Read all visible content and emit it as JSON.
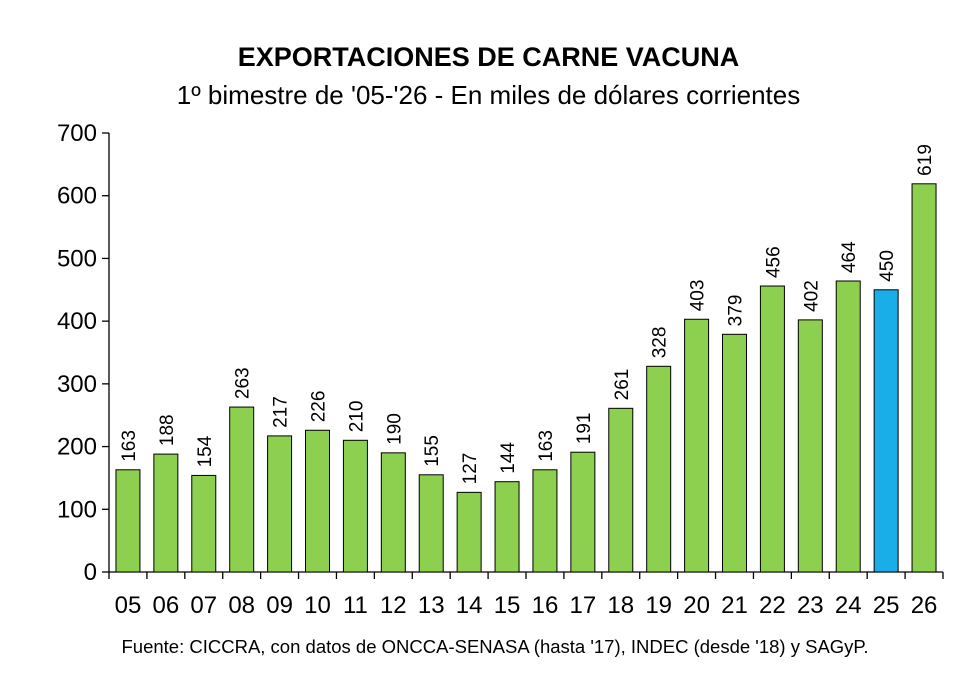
{
  "chart_data": {
    "type": "bar",
    "title": "EXPORTACIONES DE CARNE VACUNA",
    "subtitle": "1º bimestre de '05-'26 - En miles de dólares corrientes",
    "categories": [
      "05",
      "06",
      "07",
      "08",
      "09",
      "10",
      "11",
      "12",
      "13",
      "14",
      "15",
      "16",
      "17",
      "18",
      "19",
      "20",
      "21",
      "22",
      "23",
      "24",
      "25",
      "26"
    ],
    "values": [
      163,
      188,
      154,
      263,
      217,
      226,
      210,
      190,
      155,
      127,
      144,
      163,
      191,
      261,
      328,
      403,
      379,
      456,
      402,
      464,
      450,
      619
    ],
    "data_labels": [
      "163",
      "188",
      "154",
      "263",
      "217",
      "226",
      "210",
      "190",
      "155",
      "127",
      "144",
      "163",
      "191",
      "261",
      "328",
      "403",
      "379",
      "456",
      "402",
      "464",
      "450",
      "619"
    ],
    "bar_colors": [
      "#8dcf4f",
      "#8dcf4f",
      "#8dcf4f",
      "#8dcf4f",
      "#8dcf4f",
      "#8dcf4f",
      "#8dcf4f",
      "#8dcf4f",
      "#8dcf4f",
      "#8dcf4f",
      "#8dcf4f",
      "#8dcf4f",
      "#8dcf4f",
      "#8dcf4f",
      "#8dcf4f",
      "#8dcf4f",
      "#8dcf4f",
      "#8dcf4f",
      "#8dcf4f",
      "#8dcf4f",
      "#19aee8",
      "#8dcf4f"
    ],
    "ylim": [
      0,
      700
    ],
    "yticks": [
      "0",
      "100",
      "200",
      "300",
      "400",
      "500",
      "600",
      "700"
    ],
    "xlabel": "",
    "ylabel": "",
    "grid": false,
    "source": "Fuente: CICCRA, con datos de ONCCA-SENASA (hasta '17), INDEC (desde '18) y SAGyP."
  }
}
